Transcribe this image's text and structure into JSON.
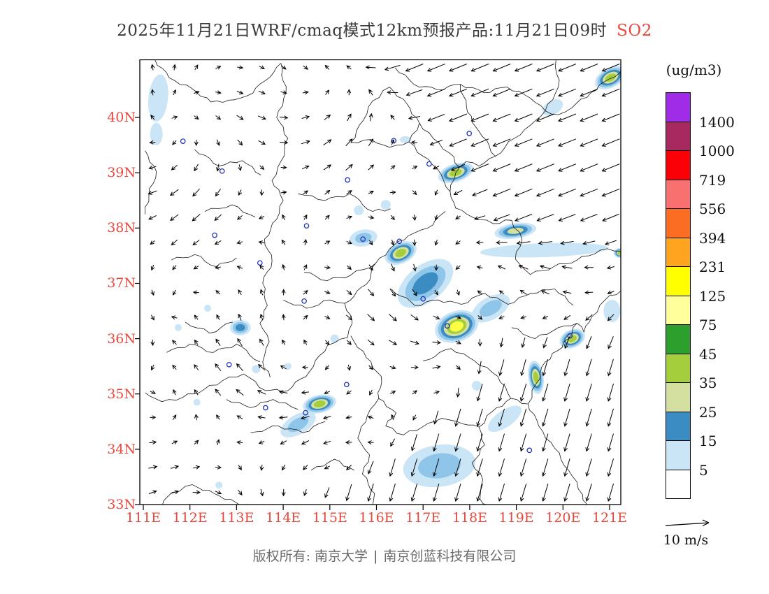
{
  "title": {
    "main": "2025年11月21日WRF/cmaq模式12km预报产品:11月21日09时",
    "species": "SO2"
  },
  "colors": {
    "accent_red": "#E8483C",
    "text_dark": "#3A3A3A",
    "text_gray": "#6B6B6B"
  },
  "axes": {
    "lat_ticks": [
      "40N",
      "39N",
      "38N",
      "37N",
      "36N",
      "35N",
      "34N",
      "33N"
    ],
    "lon_ticks": [
      "111E",
      "112E",
      "113E",
      "114E",
      "115E",
      "116E",
      "117E",
      "118E",
      "119E",
      "120E",
      "121E"
    ]
  },
  "legend": {
    "units": "(ug/m3)",
    "labels": [
      "1400",
      "1000",
      "719",
      "556",
      "394",
      "231",
      "125",
      "75",
      "45",
      "35",
      "25",
      "15",
      "5"
    ],
    "colors_top_to_bottom": [
      "#A02CE8",
      "#A82860",
      "#FB0007",
      "#F97070",
      "#FB6D22",
      "#FFA41F",
      "#FFFF00",
      "#FFFF9C",
      "#2D9F2D",
      "#A5CE3C",
      "#D4E0A0",
      "#3A8CC3",
      "#C9E5F6",
      "#FFFFFF"
    ]
  },
  "wind_scale": {
    "label": "10 m/s"
  },
  "footer": {
    "copyright": "版权所有: 南京大学",
    "divider": "|",
    "company": "南京创蓝科技有限公司"
  },
  "chart_data": {
    "type": "heatmap",
    "title": "2025年11月21日WRF/cmaq模式12km预报产品:11月21日09时 SO2",
    "species": "SO2",
    "units": "ug/m3",
    "lon_range": [
      111,
      121.25
    ],
    "lat_range": [
      33,
      41.05
    ],
    "lon_ticks": [
      111,
      112,
      113,
      114,
      115,
      116,
      117,
      118,
      119,
      120,
      121
    ],
    "lat_ticks": [
      33,
      34,
      35,
      36,
      37,
      38,
      39,
      40
    ],
    "contour_levels": [
      5,
      15,
      25,
      35,
      45,
      75,
      125,
      231,
      394,
      556,
      719,
      1000,
      1400
    ],
    "palette_low_to_high": [
      "#FFFFFF",
      "#C9E5F6",
      "#3A8CC3",
      "#D4E0A0",
      "#A5CE3C",
      "#2D9F2D",
      "#FFFF9C",
      "#FFFF00",
      "#FFA41F",
      "#FB6D22",
      "#F97070",
      "#FB0007",
      "#A82860",
      "#A02CE8"
    ],
    "blob_level_colors": [
      "#C9E5F6",
      "#8FC5E9",
      "#3A8CC3",
      "#D4E0A0",
      "#A5CE3C",
      "#FFFF44"
    ],
    "wind": {
      "scale_m_s": 10,
      "regimes": [
        {
          "region": "northeast of domain",
          "flow": "strong northeasterly (arrows toward SW)"
        },
        {
          "region": "southeast of domain",
          "flow": "strong northerly (arrows toward S)"
        },
        {
          "region": "elsewhere",
          "flow": "light variable"
        }
      ]
    },
    "hotspots": [
      [
        111.32,
        40.35,
        14,
        34,
        6,
        1
      ],
      [
        111.28,
        39.7,
        9,
        16,
        0,
        1
      ],
      [
        121.02,
        40.72,
        24,
        14,
        -28,
        5
      ],
      [
        119.78,
        40.18,
        16,
        10,
        -30,
        1
      ],
      [
        117.7,
        39.0,
        26,
        13,
        -18,
        5
      ],
      [
        116.62,
        39.6,
        8,
        5,
        0,
        1
      ],
      [
        118.98,
        37.95,
        30,
        11,
        -8,
        4
      ],
      [
        116.52,
        37.55,
        24,
        15,
        -25,
        5
      ],
      [
        115.72,
        37.82,
        20,
        12,
        -10,
        2
      ],
      [
        117.05,
        37.0,
        46,
        26,
        -38,
        3
      ],
      [
        117.72,
        36.22,
        32,
        22,
        -20,
        6
      ],
      [
        118.45,
        36.55,
        30,
        16,
        -30,
        2
      ],
      [
        113.08,
        36.2,
        15,
        11,
        0,
        3
      ],
      [
        120.2,
        36.0,
        19,
        13,
        -24,
        5
      ],
      [
        119.42,
        35.3,
        11,
        24,
        -8,
        5
      ],
      [
        114.78,
        34.82,
        24,
        13,
        -12,
        5
      ],
      [
        114.32,
        34.45,
        28,
        14,
        -30,
        2
      ],
      [
        117.35,
        33.7,
        52,
        30,
        -8,
        2
      ],
      [
        118.75,
        34.55,
        28,
        12,
        -35,
        1
      ],
      [
        119.6,
        37.6,
        92,
        10,
        -2,
        1
      ],
      [
        121.22,
        37.55,
        9,
        7,
        0,
        5
      ],
      [
        121.05,
        36.5,
        12,
        16,
        0,
        1
      ]
    ],
    "specks": [
      [
        111.75,
        36.2,
        5
      ],
      [
        112.38,
        36.55,
        5
      ],
      [
        113.42,
        35.45,
        6
      ],
      [
        112.15,
        34.85,
        5
      ],
      [
        115.1,
        36.0,
        6
      ],
      [
        115.62,
        38.32,
        7
      ],
      [
        114.1,
        35.5,
        5
      ],
      [
        118.15,
        35.15,
        7
      ],
      [
        112.62,
        33.35,
        5
      ],
      [
        116.2,
        38.42,
        7
      ]
    ],
    "cities": [
      [
        111.85,
        39.57
      ],
      [
        112.69,
        39.03
      ],
      [
        115.38,
        38.87
      ],
      [
        116.37,
        39.58
      ],
      [
        117.13,
        39.16
      ],
      [
        117.99,
        39.71
      ],
      [
        116.49,
        37.76
      ],
      [
        115.71,
        37.8
      ],
      [
        114.45,
        36.68
      ],
      [
        112.84,
        35.53
      ],
      [
        113.5,
        37.37
      ],
      [
        115.36,
        35.17
      ],
      [
        114.48,
        34.66
      ],
      [
        117.0,
        36.72
      ],
      [
        117.52,
        36.23
      ],
      [
        120.15,
        36.05
      ],
      [
        119.28,
        33.98
      ],
      [
        112.53,
        37.87
      ],
      [
        114.5,
        38.04
      ],
      [
        113.62,
        34.75
      ]
    ],
    "boundaries": {
      "coast_bohai": [
        [
          119.85,
          41.04
        ],
        [
          119.9,
          40.55
        ],
        [
          119.62,
          40.12
        ],
        [
          119.3,
          39.86
        ],
        [
          118.95,
          39.62
        ],
        [
          118.55,
          39.3
        ],
        [
          118.2,
          39.12
        ],
        [
          117.92,
          39.2
        ],
        [
          117.7,
          39.0
        ],
        [
          117.58,
          38.66
        ],
        [
          117.7,
          38.36
        ],
        [
          118.05,
          38.2
        ],
        [
          118.5,
          38.08
        ],
        [
          118.9,
          38.14
        ],
        [
          119.12,
          37.8
        ],
        [
          118.98,
          37.44
        ],
        [
          119.3,
          37.16
        ],
        [
          119.8,
          37.3
        ],
        [
          120.3,
          37.42
        ],
        [
          120.8,
          37.6
        ],
        [
          121.4,
          37.6
        ]
      ],
      "coast_liaoning": [
        [
          121.4,
          40.92
        ],
        [
          121.0,
          40.7
        ],
        [
          120.6,
          40.45
        ],
        [
          120.2,
          40.18
        ],
        [
          119.9,
          40.05
        ],
        [
          119.62,
          40.12
        ]
      ],
      "coast_south": [
        [
          121.4,
          36.9
        ],
        [
          121.0,
          36.78
        ],
        [
          120.62,
          36.4
        ],
        [
          120.45,
          36.12
        ],
        [
          120.3,
          36.28
        ],
        [
          120.12,
          36.0
        ],
        [
          119.88,
          35.78
        ],
        [
          119.62,
          35.58
        ],
        [
          119.42,
          35.18
        ],
        [
          119.25,
          34.82
        ],
        [
          119.48,
          34.42
        ],
        [
          119.82,
          34.02
        ],
        [
          120.12,
          33.62
        ],
        [
          120.42,
          33.18
        ],
        [
          120.52,
          32.9
        ]
      ],
      "shanxi_hebei": [
        [
          113.95,
          40.98
        ],
        [
          114.06,
          40.45
        ],
        [
          113.86,
          40.0
        ],
        [
          114.1,
          39.62
        ],
        [
          113.96,
          39.22
        ],
        [
          113.76,
          38.86
        ],
        [
          114.0,
          38.5
        ],
        [
          113.86,
          38.16
        ],
        [
          113.6,
          37.8
        ],
        [
          113.76,
          37.4
        ],
        [
          113.56,
          37.0
        ],
        [
          113.66,
          36.6
        ],
        [
          113.5,
          36.28
        ],
        [
          113.7,
          35.95
        ],
        [
          113.56,
          35.58
        ],
        [
          113.72,
          35.3
        ]
      ],
      "north_border": [
        [
          111.25,
          41.04
        ],
        [
          111.55,
          40.72
        ],
        [
          112.05,
          40.52
        ],
        [
          112.45,
          40.28
        ],
        [
          112.95,
          40.32
        ],
        [
          113.35,
          40.44
        ],
        [
          113.95,
          40.98
        ]
      ],
      "yellow_river_west": [
        [
          111.04,
          39.4
        ],
        [
          111.28,
          39.02
        ],
        [
          111.12,
          38.6
        ],
        [
          111.04,
          38.25
        ]
      ],
      "henan_north": [
        [
          111.04,
          35.02
        ],
        [
          111.4,
          34.86
        ],
        [
          111.85,
          34.94
        ],
        [
          112.3,
          35.08
        ],
        [
          112.7,
          35.24
        ],
        [
          113.15,
          35.36
        ],
        [
          113.62,
          35.06
        ],
        [
          114.1,
          35.06
        ],
        [
          114.56,
          35.4
        ],
        [
          114.95,
          35.88
        ],
        [
          115.38,
          36.02
        ],
        [
          115.48,
          36.28
        ]
      ],
      "hebei_shandong": [
        [
          115.48,
          36.28
        ],
        [
          115.32,
          36.64
        ],
        [
          115.78,
          36.98
        ],
        [
          115.98,
          37.36
        ],
        [
          116.28,
          37.62
        ],
        [
          116.68,
          37.86
        ],
        [
          117.1,
          38.0
        ],
        [
          117.48,
          38.3
        ]
      ],
      "shandong_south": [
        [
          115.45,
          36.05
        ],
        [
          115.78,
          35.66
        ],
        [
          116.1,
          35.32
        ],
        [
          116.05,
          34.92
        ],
        [
          116.42,
          34.66
        ],
        [
          116.2,
          34.42
        ],
        [
          116.58,
          34.26
        ],
        [
          116.98,
          34.4
        ],
        [
          117.4,
          34.56
        ],
        [
          117.85,
          34.46
        ],
        [
          118.2,
          34.4
        ],
        [
          118.48,
          34.68
        ],
        [
          118.88,
          34.92
        ],
        [
          119.25,
          34.82
        ]
      ],
      "henan_anhui": [
        [
          116.05,
          34.92
        ],
        [
          115.8,
          34.6
        ],
        [
          115.6,
          34.2
        ],
        [
          115.85,
          33.9
        ],
        [
          115.7,
          33.55
        ],
        [
          115.96,
          33.2
        ],
        [
          115.88,
          32.9
        ]
      ],
      "anhui_jiangsu": [
        [
          118.2,
          34.4
        ],
        [
          118.32,
          34.08
        ],
        [
          118.05,
          33.75
        ],
        [
          118.28,
          33.45
        ],
        [
          118.22,
          33.1
        ],
        [
          118.48,
          32.9
        ]
      ],
      "hubei_north": [
        [
          111.3,
          32.9
        ],
        [
          111.62,
          33.22
        ],
        [
          112.05,
          33.36
        ],
        [
          112.52,
          33.2
        ],
        [
          112.98,
          33.04
        ],
        [
          113.3,
          32.92
        ]
      ],
      "beijing": [
        [
          115.45,
          39.55
        ],
        [
          115.88,
          39.6
        ],
        [
          116.28,
          39.46
        ],
        [
          116.7,
          39.56
        ],
        [
          116.92,
          39.9
        ],
        [
          116.65,
          40.25
        ],
        [
          116.28,
          40.55
        ],
        [
          115.92,
          40.3
        ],
        [
          115.72,
          39.95
        ],
        [
          115.45,
          39.55
        ]
      ],
      "tianjin_a": [
        [
          116.92,
          39.9
        ],
        [
          117.22,
          39.62
        ],
        [
          117.56,
          39.36
        ],
        [
          117.78,
          39.1
        ]
      ],
      "tianjin_b": [
        [
          116.7,
          39.56
        ],
        [
          117.0,
          39.3
        ],
        [
          117.3,
          39.08
        ],
        [
          117.45,
          38.84
        ],
        [
          117.58,
          38.66
        ]
      ],
      "m1": [
        [
          112.1,
          39.42
        ],
        [
          112.62,
          39.12
        ],
        [
          113.12,
          39.22
        ],
        [
          113.52,
          38.96
        ]
      ],
      "m2": [
        [
          112.32,
          38.3
        ],
        [
          112.9,
          38.42
        ],
        [
          113.4,
          38.2
        ]
      ],
      "m3": [
        [
          111.6,
          37.42
        ],
        [
          112.1,
          37.52
        ],
        [
          112.56,
          37.3
        ],
        [
          113.0,
          37.46
        ]
      ],
      "m4": [
        [
          111.9,
          36.3
        ],
        [
          112.42,
          36.1
        ],
        [
          112.92,
          36.3
        ]
      ],
      "m5": [
        [
          114.32,
          38.62
        ],
        [
          114.9,
          38.5
        ],
        [
          115.42,
          38.62
        ],
        [
          115.92,
          38.3
        ],
        [
          116.3,
          38.35
        ]
      ],
      "m6": [
        [
          116.32,
          36.9
        ],
        [
          116.82,
          36.6
        ],
        [
          117.32,
          36.7
        ],
        [
          117.82,
          36.62
        ],
        [
          118.32,
          36.82
        ],
        [
          118.82,
          36.62
        ],
        [
          119.32,
          36.82
        ],
        [
          119.82,
          36.9
        ],
        [
          120.22,
          36.6
        ]
      ],
      "m7": [
        [
          114.6,
          33.62
        ],
        [
          115.1,
          33.82
        ],
        [
          115.52,
          33.62
        ]
      ],
      "m8": [
        [
          113.3,
          34.3
        ],
        [
          113.9,
          34.42
        ],
        [
          114.42,
          34.3
        ],
        [
          114.9,
          34.5
        ]
      ],
      "m9": [
        [
          117.0,
          35.6
        ],
        [
          117.6,
          35.82
        ],
        [
          118.1,
          35.6
        ],
        [
          118.6,
          35.32
        ],
        [
          118.88,
          34.92
        ]
      ],
      "m10": [
        [
          118.9,
          36.2
        ],
        [
          119.4,
          36.0
        ],
        [
          119.9,
          36.2
        ],
        [
          120.3,
          36.28
        ]
      ],
      "m11": [
        [
          114.45,
          37.2
        ],
        [
          114.95,
          37.05
        ],
        [
          115.45,
          37.15
        ],
        [
          115.98,
          37.36
        ]
      ],
      "m12": [
        [
          111.5,
          35.75
        ],
        [
          112.0,
          35.9
        ],
        [
          112.5,
          35.75
        ],
        [
          113.0,
          35.9
        ],
        [
          113.5,
          35.58
        ]
      ],
      "m13": [
        [
          114.0,
          36.7
        ],
        [
          114.5,
          36.55
        ],
        [
          115.0,
          36.7
        ],
        [
          115.32,
          36.64
        ]
      ],
      "m14": [
        [
          116.4,
          40.9
        ],
        [
          116.8,
          40.6
        ],
        [
          117.3,
          40.5
        ],
        [
          117.8,
          40.6
        ],
        [
          118.3,
          40.45
        ],
        [
          118.8,
          40.55
        ],
        [
          119.3,
          40.35
        ],
        [
          119.62,
          40.12
        ]
      ],
      "m15": [
        [
          117.8,
          40.6
        ],
        [
          117.95,
          40.1
        ],
        [
          118.2,
          39.75
        ],
        [
          118.55,
          39.3
        ]
      ],
      "m16": [
        [
          112.78,
          34.9
        ],
        [
          113.3,
          34.75
        ],
        [
          113.78,
          34.9
        ],
        [
          114.32,
          34.72
        ]
      ]
    }
  }
}
